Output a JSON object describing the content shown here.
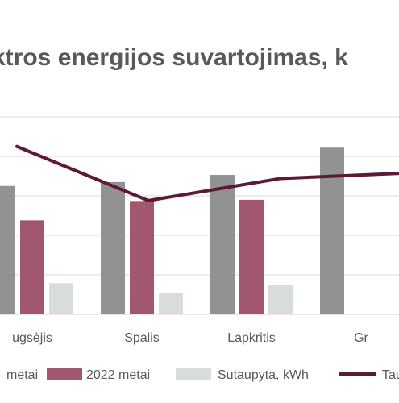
{
  "chart_data": {
    "type": "bar",
    "title": "ktros energijos suvartojimas, k",
    "categories": [
      "ugsėjis",
      "Spalis",
      "Lapkritis",
      "Gr"
    ],
    "series": [
      {
        "name": "metai",
        "kind": "bar",
        "color": "#929292",
        "values": [
          3250,
          3350,
          3530,
          4220
        ]
      },
      {
        "name": "2022 metai",
        "kind": "bar",
        "color": "#a1586f",
        "values": [
          2380,
          2870,
          2900,
          null
        ]
      },
      {
        "name": "Sutaupyta, kWh",
        "kind": "bar",
        "color": "#d9dcdc",
        "values": [
          790,
          530,
          740,
          null
        ]
      },
      {
        "name": "Tau",
        "kind": "line",
        "color": "#5b1a36",
        "values": [
          4250,
          2880,
          3440,
          3570
        ]
      }
    ],
    "ylim": [
      0,
      5000
    ],
    "grid": true,
    "legend": "bottom"
  }
}
